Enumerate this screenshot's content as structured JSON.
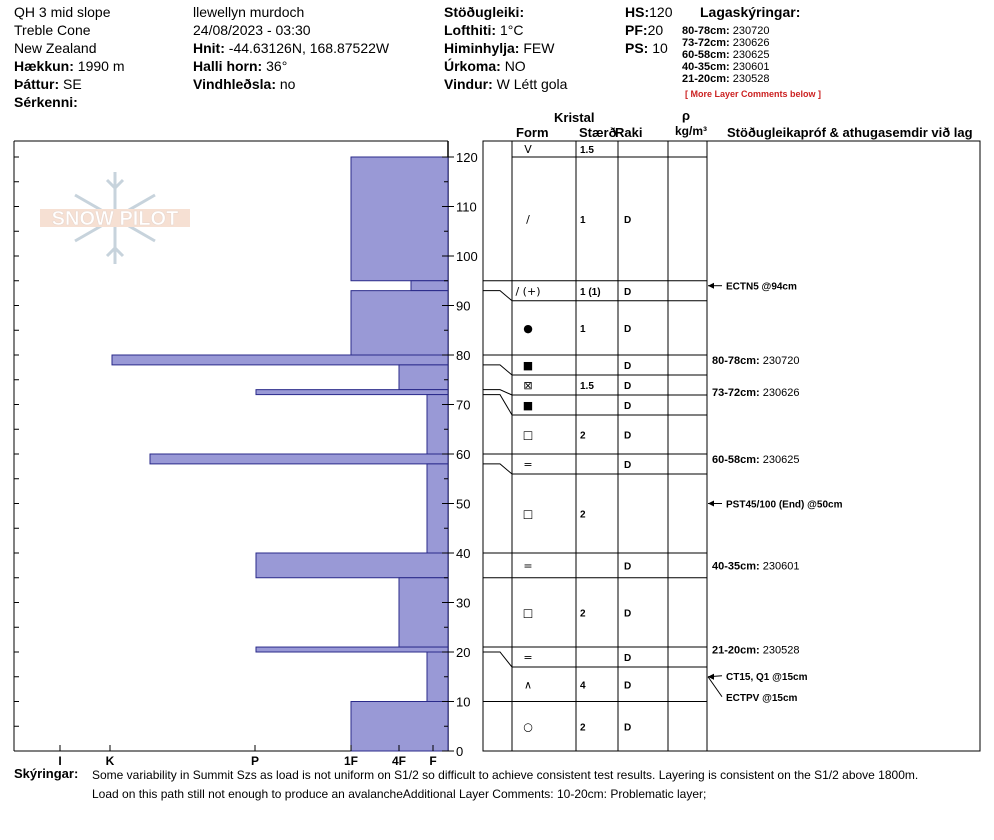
{
  "header": {
    "site": "QH 3 mid slope",
    "area": "Treble Cone",
    "country": "New Zealand",
    "elevation_label": "Hækkun:",
    "elevation_value": "1990 m",
    "aspect_label": "Þáttur:",
    "aspect_value": "SE",
    "features_label": "Sérkenni:",
    "observer": "llewellyn murdoch",
    "datetime": "24/08/2023 - 03:30",
    "coords_label": "Hnit:",
    "coords_value": "-44.63126N, 168.87522W",
    "slope_label": "Halli horn:",
    "slope_value": "36°",
    "wind_loading_label": "Vindhleðsla:",
    "wind_loading_value": "no",
    "stability_label": "Stöðugleiki:",
    "air_temp_label": "Lofthiti:",
    "air_temp_value": "1°C",
    "sky_label": "Himinhylja:",
    "sky_value": "FEW",
    "precip_label": "Úrkoma:",
    "precip_value": "NO",
    "wind_label": "Vindur:",
    "wind_value": "W Létt gola",
    "hs_label": "HS:",
    "hs_value": "120",
    "pf_label": "PF:",
    "pf_value": "20",
    "ps_label": "PS:",
    "ps_value": "10",
    "layer_notes_title": "Lagaskýringar:",
    "layer_notes": [
      {
        "range": "80-78cm:",
        "value": "230720"
      },
      {
        "range": "73-72cm:",
        "value": "230626"
      },
      {
        "range": "60-58cm:",
        "value": "230625"
      },
      {
        "range": "40-35cm:",
        "value": "230601"
      },
      {
        "range": "21-20cm:",
        "value": "230528"
      }
    ],
    "more_comments": "[ More Layer Comments below ]"
  },
  "watermark": "SNOW PILOT",
  "columns": {
    "crystal": "Kristal",
    "form": "Form",
    "size": "Stærð",
    "moisture": "Raki",
    "density_symbol": "ρ",
    "density_unit": "kg/m³",
    "tests": "Stöðugleikapróf & athugasemdir við lag"
  },
  "chart_data": {
    "type": "bar",
    "orientation": "horizontal",
    "y_axis": {
      "label": "",
      "range": [
        0,
        120
      ],
      "ticks": [
        0,
        10,
        20,
        30,
        40,
        50,
        60,
        70,
        80,
        90,
        100,
        110,
        120
      ]
    },
    "hardness_scale": [
      "I",
      "K",
      "P",
      "1F",
      "4F",
      "F"
    ],
    "layers": [
      {
        "top": 120,
        "bottom": 95,
        "hardness": "1F"
      },
      {
        "top": 95,
        "bottom": 93,
        "hardness": "F+"
      },
      {
        "top": 93,
        "bottom": 80,
        "hardness": "1F"
      },
      {
        "top": 80,
        "bottom": 78,
        "hardness": "K-"
      },
      {
        "top": 78,
        "bottom": 73,
        "hardness": "4F"
      },
      {
        "top": 73,
        "bottom": 72,
        "hardness": "P+"
      },
      {
        "top": 72,
        "bottom": 60,
        "hardness": "F-"
      },
      {
        "top": 60,
        "bottom": 58,
        "hardness": "K+"
      },
      {
        "top": 58,
        "bottom": 40,
        "hardness": "F-"
      },
      {
        "top": 40,
        "bottom": 35,
        "hardness": "P+"
      },
      {
        "top": 35,
        "bottom": 21,
        "hardness": "4F"
      },
      {
        "top": 21,
        "bottom": 20,
        "hardness": "P+"
      },
      {
        "top": 20,
        "bottom": 10,
        "hardness": "F-"
      },
      {
        "top": 10,
        "bottom": 0,
        "hardness": "1F"
      }
    ],
    "hardness_positions": {
      "I": 60,
      "K": 110,
      "K+": 150,
      "K-": 112,
      "P": 255,
      "P+": 256,
      "1F": 351,
      "4F": 399,
      "F": 433,
      "F+": 411,
      "F-": 427
    },
    "crystal_rows": [
      {
        "top": 120,
        "bottom": 120,
        "form": "V",
        "size": "1.5",
        "moisture": ""
      },
      {
        "top": 120,
        "bottom": 95,
        "form": "/",
        "size": "1",
        "moisture": "D"
      },
      {
        "top": 95,
        "bottom": 93,
        "form": "/ (+)",
        "size": "1 (1)",
        "moisture": "D"
      },
      {
        "top": 93,
        "bottom": 80,
        "form": "●",
        "size": "1",
        "moisture": "D"
      },
      {
        "top": 80,
        "bottom": 78,
        "form": "■",
        "size": "",
        "moisture": "D"
      },
      {
        "top": 78,
        "bottom": 73,
        "form": "⊠",
        "size": "1.5",
        "moisture": "D"
      },
      {
        "top": 73,
        "bottom": 72,
        "form": "■",
        "size": "",
        "moisture": "D"
      },
      {
        "top": 72,
        "bottom": 60,
        "form": "□",
        "size": "2",
        "moisture": "D"
      },
      {
        "top": 60,
        "bottom": 58,
        "form": "=",
        "size": "",
        "moisture": "D"
      },
      {
        "top": 58,
        "bottom": 40,
        "form": "□",
        "size": "2",
        "moisture": ""
      },
      {
        "top": 40,
        "bottom": 35,
        "form": "=",
        "size": "",
        "moisture": "D"
      },
      {
        "top": 35,
        "bottom": 21,
        "form": "□",
        "size": "2",
        "moisture": "D"
      },
      {
        "top": 21,
        "bottom": 20,
        "form": "=",
        "size": "",
        "moisture": "D"
      },
      {
        "top": 20,
        "bottom": 10,
        "form": "∧",
        "size": "4",
        "moisture": "D"
      },
      {
        "top": 10,
        "bottom": 0,
        "form": "○",
        "size": "2",
        "moisture": "D"
      }
    ],
    "annotations": [
      {
        "depth": 94,
        "text": "ECTN5 @94cm",
        "type": "test"
      },
      {
        "depth": 79,
        "label": "80-78cm:",
        "text": "230720",
        "type": "note"
      },
      {
        "depth": 72.5,
        "label": "73-72cm:",
        "text": "230626",
        "type": "note"
      },
      {
        "depth": 59,
        "label": "60-58cm:",
        "text": "230625",
        "type": "note"
      },
      {
        "depth": 50,
        "text": "PST45/100 (End) @50cm",
        "type": "test"
      },
      {
        "depth": 37.5,
        "label": "40-35cm:",
        "text": "230601",
        "type": "note"
      },
      {
        "depth": 20.5,
        "label": "21-20cm:",
        "text": "230528",
        "type": "note"
      },
      {
        "depth": 15,
        "text": "CT15, Q1 @15cm",
        "type": "test",
        "offset": "up"
      },
      {
        "depth": 15,
        "text": "ECTPV @15cm",
        "type": "test",
        "offset": "down"
      }
    ]
  },
  "footer": {
    "label": "Skýringar:",
    "line1": "Some variability in Summit Szs as load is not uniform on S1/2 so difficult to achieve consistent test results. Layering is consistent on the S1/2 above 1800m.",
    "line2": "Load on this path still not enough to produce an avalancheAdditional Layer Comments: 10-20cm: Problematic layer;"
  },
  "colors": {
    "bar_fill": "#9999d6",
    "bar_stroke": "#2a2a8a"
  }
}
